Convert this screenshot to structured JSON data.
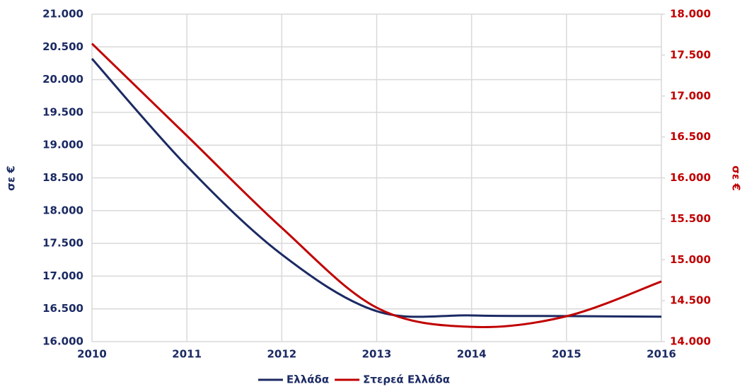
{
  "chart_data": {
    "type": "line",
    "categories": [
      "2010",
      "2011",
      "2012",
      "2013",
      "2014",
      "2015",
      "2016"
    ],
    "y_label": "σε €",
    "y2_label": "σε €",
    "series": [
      {
        "name": "Ελλάδα",
        "color": "#1b2a63",
        "values": [
          20320,
          18680,
          17330,
          16465,
          16400,
          16390,
          16380
        ]
      },
      {
        "name": "Στερεά Ελλάδα",
        "color": "#c00000",
        "axis": "y2",
        "values": [
          17640,
          16515,
          15390,
          14415,
          14180,
          14310,
          14735
        ]
      }
    ],
    "ylim": [
      16000,
      21000
    ],
    "yticks": [
      {
        "value": 16000,
        "label": "16.000"
      },
      {
        "value": 16500,
        "label": "16.500"
      },
      {
        "value": 17000,
        "label": "17.000"
      },
      {
        "value": 17500,
        "label": "17.500"
      },
      {
        "value": 18000,
        "label": "18.000"
      },
      {
        "value": 18500,
        "label": "18.500"
      },
      {
        "value": 19000,
        "label": "19.000"
      },
      {
        "value": 19500,
        "label": "19.500"
      },
      {
        "value": 20000,
        "label": "20.000"
      },
      {
        "value": 20500,
        "label": "20.500"
      },
      {
        "value": 21000,
        "label": "21.000"
      }
    ],
    "y2lim": [
      14000,
      18000
    ],
    "y2ticks": [
      {
        "value": 14000,
        "label": "14.000"
      },
      {
        "value": 14500,
        "label": "14.500"
      },
      {
        "value": 15000,
        "label": "15.000"
      },
      {
        "value": 15500,
        "label": "15.500"
      },
      {
        "value": 16000,
        "label": "16.000"
      },
      {
        "value": 16500,
        "label": "16.500"
      },
      {
        "value": 17000,
        "label": "17.000"
      },
      {
        "value": 17500,
        "label": "17.500"
      },
      {
        "value": 18000,
        "label": "18.000"
      }
    ],
    "grid": true,
    "smooth": true,
    "legend": "bottom"
  }
}
